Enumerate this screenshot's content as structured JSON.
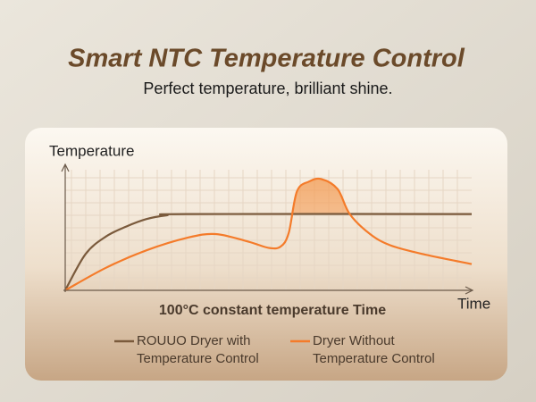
{
  "chart_data": {
    "type": "line",
    "title": "Smart NTC Temperature Control",
    "subtitle": "Perfect temperature, brilliant shine.",
    "y_label": "Temperature",
    "x_label": "Time",
    "annotation": "100°C constant temperature Time",
    "xlim": [
      0,
      100
    ],
    "ylim": [
      0,
      100
    ],
    "grid": true,
    "series": [
      {
        "name": "ROUUO Dryer with Temperature Control",
        "color": "#7a5a3c",
        "x": [
          0,
          5,
          10,
          15,
          20,
          25,
          30,
          100
        ],
        "values": [
          0,
          29,
          43,
          51,
          57,
          60,
          61,
          61
        ]
      },
      {
        "name": "Dryer Without Temperature Control",
        "color": "#f47b2a",
        "x": [
          0,
          10,
          20,
          30,
          37,
          45,
          50,
          53,
          55,
          57,
          60,
          63,
          67,
          70,
          75,
          80,
          88,
          100
        ],
        "values": [
          0,
          18,
          32,
          42,
          45,
          39,
          34,
          35,
          46,
          79,
          87,
          89,
          81,
          61,
          45,
          36,
          29,
          21
        ]
      }
    ]
  }
}
